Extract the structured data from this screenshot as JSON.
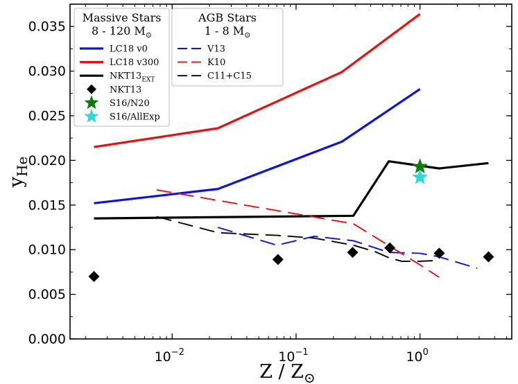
{
  "chart_data": {
    "type": "line",
    "xscale": "log",
    "xlim": [
      0.0015,
      5.5
    ],
    "ylim": [
      0.0,
      0.0375
    ],
    "xticks": [
      0.01,
      0.1,
      1
    ],
    "xtick_labels": [
      {
        "base": "10",
        "exp": "−2"
      },
      {
        "base": "10",
        "exp": "−1"
      },
      {
        "base": "10",
        "exp": "0"
      }
    ],
    "yticks": [
      "0.000",
      "0.005",
      "0.010",
      "0.015",
      "0.020",
      "0.025",
      "0.030",
      "0.035"
    ],
    "xlabel": {
      "main": "Z / Z",
      "sub": "⊙"
    },
    "ylabel": {
      "main": "y",
      "sub": "He"
    },
    "grid": false,
    "legend_placement": "top-left",
    "legends": [
      {
        "title1": "Massive Stars",
        "title2": "8 - 120 M",
        "title2_sub": "⊙",
        "entries": [
          {
            "label": "LC18 v0",
            "sub": "",
            "kind": "line",
            "color": "#0a12e6",
            "dash": "solid"
          },
          {
            "label": "LC18 v300",
            "sub": "",
            "kind": "line",
            "color": "#ee0d0d",
            "dash": "solid"
          },
          {
            "label": "NKT13",
            "sub": "EXT",
            "kind": "line",
            "color": "#000000",
            "dash": "solid"
          },
          {
            "label": "NKT13",
            "sub": "",
            "kind": "diamond",
            "color": "#000000"
          },
          {
            "label": "S16/N20",
            "sub": "",
            "kind": "star",
            "color": "#0b7d0b"
          },
          {
            "label": "S16/AllExp",
            "sub": "",
            "kind": "star",
            "color": "#33d6d6"
          }
        ]
      },
      {
        "title1": "AGB Stars",
        "title2": "1 - 8 M",
        "title2_sub": "⊙",
        "entries": [
          {
            "label": "V13",
            "sub": "",
            "kind": "line",
            "color": "#0a12e6",
            "dash": "dashed"
          },
          {
            "label": "K10",
            "sub": "",
            "kind": "line",
            "color": "#ee0d0d",
            "dash": "dashed"
          },
          {
            "label": "C11+C15",
            "sub": "",
            "kind": "line",
            "color": "#000000",
            "dash": "dashed"
          }
        ]
      }
    ],
    "series": [
      {
        "name": "LC18 v0",
        "style": "solid",
        "color": "#0a12e6",
        "x": [
          0.00234,
          0.0234,
          0.234,
          1.0
        ],
        "y": [
          0.0152,
          0.0168,
          0.0221,
          0.028
        ]
      },
      {
        "name": "LC18 v300",
        "style": "solid",
        "color": "#ee0d0d",
        "x": [
          0.00234,
          0.0234,
          0.234,
          1.0
        ],
        "y": [
          0.0215,
          0.0236,
          0.0299,
          0.0364
        ]
      },
      {
        "name": "NKT13EXT",
        "style": "solid",
        "color": "#000000",
        "x": [
          0.00234,
          0.29,
          0.56,
          1.43,
          3.57
        ],
        "y": [
          0.0135,
          0.0138,
          0.0199,
          0.0191,
          0.0197
        ]
      },
      {
        "name": "V13",
        "style": "dashed",
        "color": "#0a12e6",
        "x": [
          0.0234,
          0.07,
          0.14,
          0.29,
          0.56,
          1.0,
          1.43,
          2.9
        ],
        "y": [
          0.0125,
          0.0105,
          0.0115,
          0.011,
          0.0097,
          0.0096,
          0.0092,
          0.0079
        ]
      },
      {
        "name": "K10",
        "style": "dashed",
        "color": "#ee0d0d",
        "x": [
          0.0075,
          0.29,
          1.0,
          1.43
        ],
        "y": [
          0.0167,
          0.0129,
          0.0083,
          0.0069
        ]
      },
      {
        "name": "C11+C15",
        "style": "dashed",
        "color": "#000000",
        "x": [
          0.0075,
          0.0234,
          0.07,
          0.14,
          0.29,
          0.43,
          0.56,
          0.71,
          1.0,
          1.43
        ],
        "y": [
          0.0137,
          0.0119,
          0.0116,
          0.0113,
          0.0105,
          0.0098,
          0.0091,
          0.0087,
          0.0087,
          0.0088
        ]
      }
    ],
    "points": [
      {
        "name": "NKT13",
        "marker": "diamond",
        "color": "#000000",
        "x": [
          0.00234,
          0.0714,
          0.286,
          0.571,
          1.43,
          3.57
        ],
        "y": [
          0.007,
          0.0089,
          0.0097,
          0.0102,
          0.0096,
          0.0092
        ]
      },
      {
        "name": "S16/N20",
        "marker": "star",
        "color": "#0b7d0b",
        "x": [
          1.0
        ],
        "y": [
          0.0193
        ]
      },
      {
        "name": "S16/AllExp",
        "marker": "star",
        "color": "#33d6d6",
        "x": [
          1.0
        ],
        "y": [
          0.0181
        ]
      }
    ]
  }
}
